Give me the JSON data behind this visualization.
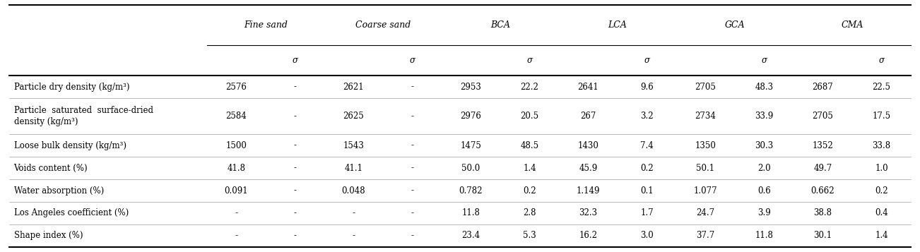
{
  "col_groups": [
    "Fine sand",
    "Coarse sand",
    "BCA",
    "LCA",
    "GCA",
    "CMA"
  ],
  "sub_headers": [
    "σ",
    "σ",
    "σ",
    "σ",
    "σ",
    "σ"
  ],
  "row_labels": [
    "Particle dry density (kg/m³)",
    "Particle  saturated  surface-dried\ndensity (kg/m³)",
    "Loose bulk density (kg/m³)",
    "Voids content (%)",
    "Water absorption (%)",
    "Los Angeles coefficient (%)",
    "Shape index (%)"
  ],
  "table_data": [
    [
      "2576",
      "-",
      "2621",
      "-",
      "2953",
      "22.2",
      "2641",
      "9.6",
      "2705",
      "48.3",
      "2687",
      "22.5"
    ],
    [
      "2584",
      "-",
      "2625",
      "-",
      "2976",
      "20.5",
      "267",
      "3.2",
      "2734",
      "33.9",
      "2705",
      "17.5"
    ],
    [
      "1500",
      "-",
      "1543",
      "-",
      "1475",
      "48.5",
      "1430",
      "7.4",
      "1350",
      "30.3",
      "1352",
      "33.8"
    ],
    [
      "41.8",
      "-",
      "41.1",
      "-",
      "50.0",
      "1.4",
      "45.9",
      "0.2",
      "50.1",
      "2.0",
      "49.7",
      "1.0"
    ],
    [
      "0.091",
      "-",
      "0.048",
      "-",
      "0.782",
      "0.2",
      "1.149",
      "0.1",
      "1.077",
      "0.6",
      "0.662",
      "0.2"
    ],
    [
      "-",
      "-",
      "-",
      "-",
      "11.8",
      "2.8",
      "32.3",
      "1.7",
      "24.7",
      "3.9",
      "38.8",
      "0.4"
    ],
    [
      "-",
      "-",
      "-",
      "-",
      "23.4",
      "5.3",
      "16.2",
      "3.0",
      "37.7",
      "11.8",
      "30.1",
      "1.4"
    ]
  ],
  "background_color": "#ffffff",
  "text_color": "#000000",
  "header_fontsize": 9,
  "body_fontsize": 8.5,
  "row_label_fontsize": 8.5
}
